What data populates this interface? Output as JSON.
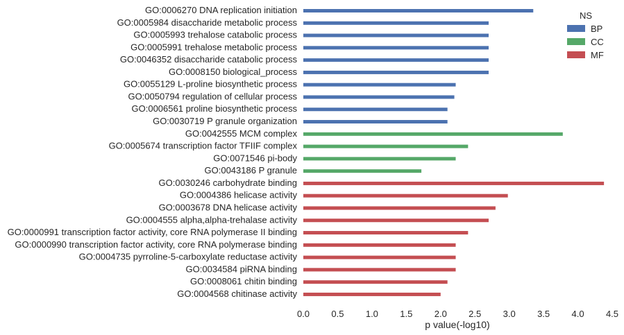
{
  "chart_data": {
    "type": "bar",
    "orientation": "horizontal",
    "categories": [
      "GO:0006270 DNA replication initiation",
      "GO:0005984 disaccharide metabolic process",
      "GO:0005993 trehalose catabolic process",
      "GO:0005991 trehalose metabolic process",
      "GO:0046352 disaccharide catabolic process",
      "GO:0008150 biological_process",
      "GO:0055129 L-proline biosynthetic process",
      "GO:0050794 regulation of cellular process",
      "GO:0006561 proline biosynthetic process",
      "GO:0030719 P granule organization",
      "GO:0042555 MCM complex",
      "GO:0005674 transcription factor TFIIF complex",
      "GO:0071546 pi-body",
      "GO:0043186 P granule",
      "GO:0030246 carbohydrate binding",
      "GO:0004386 helicase activity",
      "GO:0003678 DNA helicase activity",
      "GO:0004555 alpha,alpha-trehalase activity",
      "GO:0000991 transcription factor activity, core RNA polymerase II binding",
      "GO:0000990 transcription factor activity, core RNA polymerase binding",
      "GO:0004735 pyrroline-5-carboxylate reductase activity",
      "GO:0034584 piRNA binding",
      "GO:0008061 chitin binding",
      "GO:0004568 chitinase activity"
    ],
    "groups": [
      "BP",
      "BP",
      "BP",
      "BP",
      "BP",
      "BP",
      "BP",
      "BP",
      "BP",
      "BP",
      "CC",
      "CC",
      "CC",
      "CC",
      "MF",
      "MF",
      "MF",
      "MF",
      "MF",
      "MF",
      "MF",
      "MF",
      "MF",
      "MF"
    ],
    "values": [
      3.35,
      2.7,
      2.7,
      2.7,
      2.7,
      2.7,
      2.22,
      2.2,
      2.1,
      2.1,
      3.78,
      2.4,
      2.22,
      1.72,
      4.38,
      2.98,
      2.8,
      2.7,
      2.4,
      2.22,
      2.22,
      2.22,
      2.1,
      2.0
    ],
    "xlabel": "p value(-log10)",
    "xlim": [
      0,
      4.5
    ],
    "xticks": [
      "0.0",
      "0.5",
      "1.0",
      "1.5",
      "2.0",
      "2.5",
      "3.0",
      "3.5",
      "4.0",
      "4.5"
    ],
    "legend": {
      "title": "NS",
      "position": "top-right",
      "entries": [
        "BP",
        "CC",
        "MF"
      ]
    },
    "colors": {
      "BP": "#4c72b0",
      "CC": "#55a868",
      "MF": "#c44e52"
    },
    "grid": false
  }
}
